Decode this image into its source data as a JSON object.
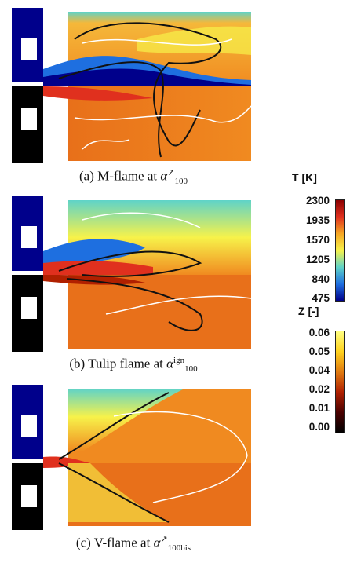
{
  "panels": [
    {
      "id": "a",
      "caption_prefix": "(a)  M-flame at ",
      "alpha": "α",
      "superscript": "↗",
      "subscript": "100"
    },
    {
      "id": "b",
      "caption_prefix": "(b)  Tulip flame at ",
      "alpha": "α",
      "superscript": "ign",
      "subscript": "100"
    },
    {
      "id": "c",
      "caption_prefix": "(c)  V-flame at ",
      "alpha": "α",
      "superscript": "↗",
      "subscript": "100bis"
    }
  ],
  "colorbar_T": {
    "title": "T [K]",
    "ticks": [
      "2300",
      "1935",
      "1570",
      "1205",
      "840",
      "475"
    ],
    "colors": [
      "#8b0000",
      "#e0301e",
      "#f5a623",
      "#f7f24a",
      "#5fd3c8",
      "#1e6fe0",
      "#00008b"
    ]
  },
  "colorbar_Z": {
    "title": "Z [-]",
    "ticks": [
      "0.06",
      "0.05",
      "0.04",
      "0.02",
      "0.01",
      "0.00"
    ],
    "colors": [
      "#ffff80",
      "#ffd21e",
      "#e07a10",
      "#b02000",
      "#4a0000",
      "#000000"
    ]
  }
}
